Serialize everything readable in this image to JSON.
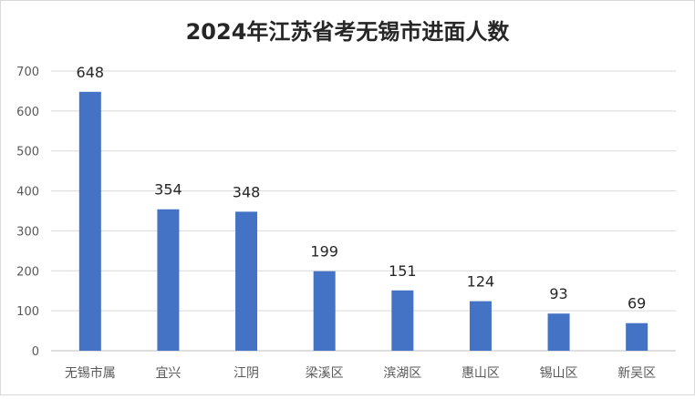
{
  "chart_data": {
    "type": "bar",
    "title": "2024年江苏省考无锡市进面人数",
    "categories": [
      "无锡市属",
      "宜兴",
      "江阴",
      "梁溪区",
      "滨湖区",
      "惠山区",
      "锡山区",
      "新吴区"
    ],
    "values": [
      648,
      354,
      348,
      199,
      151,
      124,
      93,
      69
    ],
    "ylim": [
      0,
      700
    ],
    "yticks": [
      0,
      100,
      200,
      300,
      400,
      500,
      600,
      700
    ],
    "xlabel": "",
    "ylabel": "",
    "grid": true,
    "legend": "none",
    "bar_color": "#4472c4"
  }
}
